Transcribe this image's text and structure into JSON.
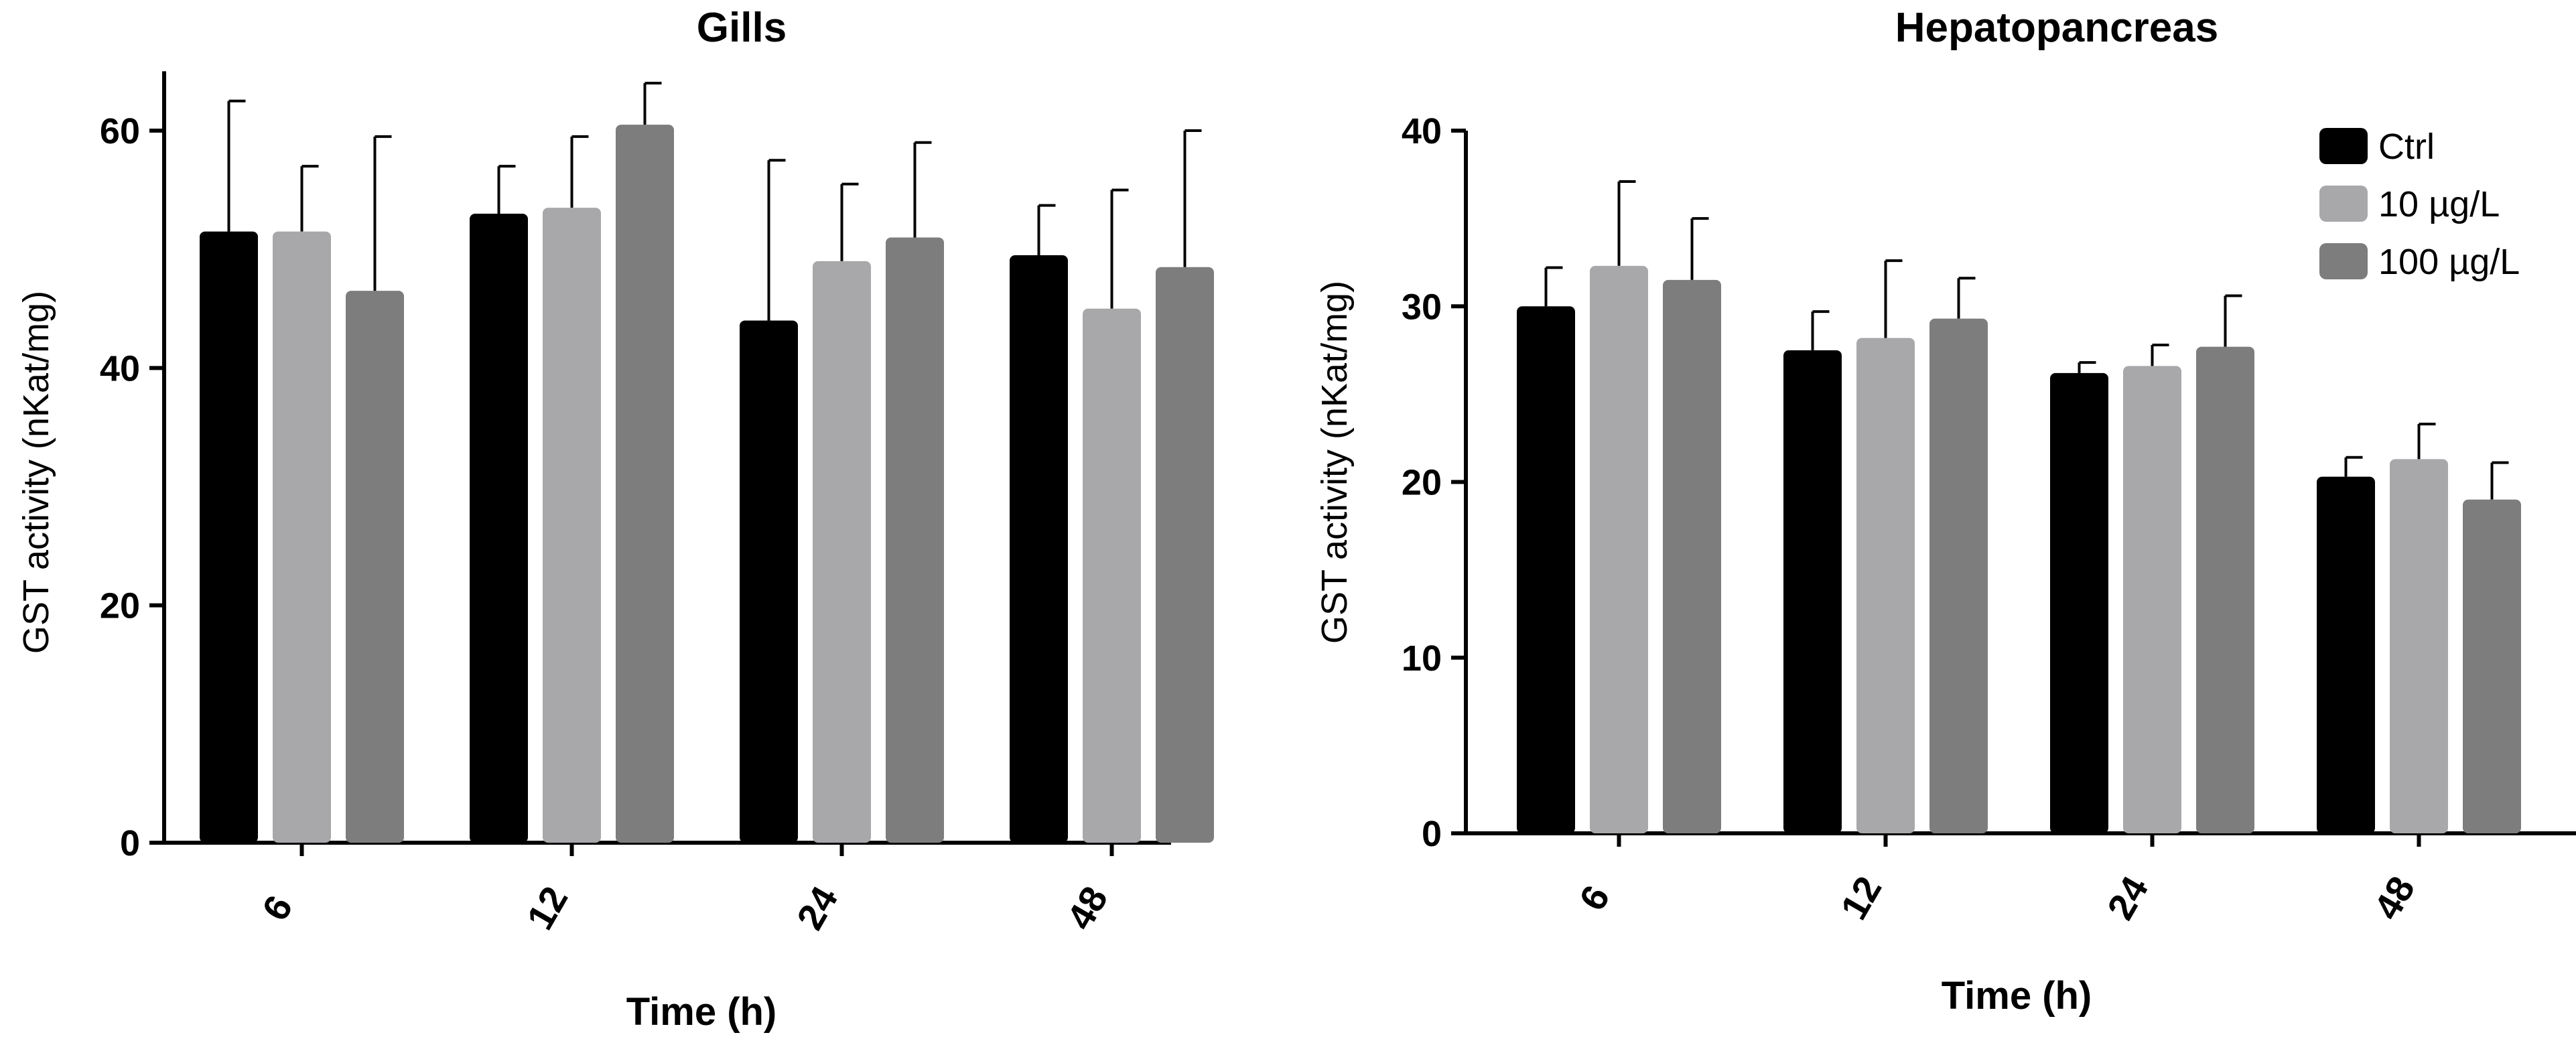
{
  "chart_data": [
    {
      "type": "bar",
      "title": "Gills",
      "xlabel": "Time (h)",
      "ylabel": "GST activity (nKat/mg)",
      "ylim": [
        0,
        65
      ],
      "yticks": [
        0,
        20,
        40,
        60
      ],
      "categories": [
        "6",
        "12",
        "24",
        "48"
      ],
      "series": [
        {
          "name": "Ctrl",
          "values": [
            51.5,
            53,
            44,
            49.5
          ],
          "errors": [
            11,
            4,
            13.5,
            4.2
          ]
        },
        {
          "name": "10 µg/L",
          "values": [
            51.5,
            53.5,
            49,
            45
          ],
          "errors": [
            5.5,
            6,
            6.5,
            10
          ]
        },
        {
          "name": "100 µg/L",
          "values": [
            46.5,
            60.5,
            51,
            48.5
          ],
          "errors": [
            13,
            3.5,
            8,
            11.5
          ]
        }
      ]
    },
    {
      "type": "bar",
      "title": "Hepatopancreas",
      "xlabel": "Time (h)",
      "ylabel": "GST activity (nKat/mg)",
      "ylim": [
        0,
        40
      ],
      "yticks": [
        0,
        10,
        20,
        30,
        40
      ],
      "categories": [
        "6",
        "12",
        "24",
        "48"
      ],
      "legend_position": "top-right",
      "series": [
        {
          "name": "Ctrl",
          "values": [
            30,
            27.5,
            26.2,
            20.3
          ],
          "errors": [
            2.2,
            2.2,
            0.6,
            1.1
          ]
        },
        {
          "name": "10 µg/L",
          "values": [
            32.3,
            28.2,
            26.6,
            21.3
          ],
          "errors": [
            4.8,
            4.4,
            1.2,
            2
          ]
        },
        {
          "name": "100 µg/L",
          "values": [
            31.5,
            29.3,
            27.7,
            19
          ],
          "errors": [
            3.5,
            2.3,
            2.9,
            2.1
          ]
        }
      ]
    }
  ],
  "colors": [
    "#000000",
    "#a8a8ab",
    "#7d7d7d"
  ]
}
